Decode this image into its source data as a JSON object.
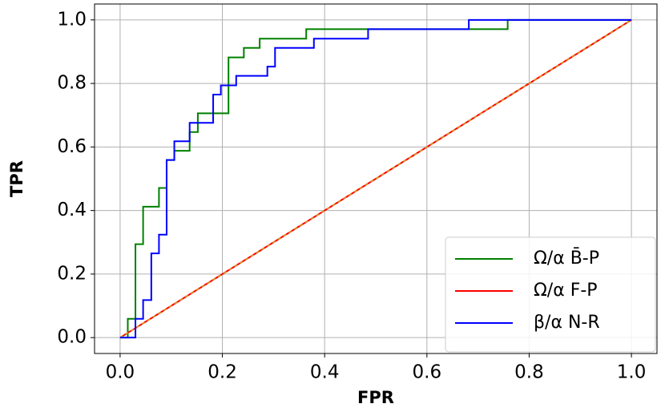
{
  "chart_data": {
    "type": "line",
    "xlabel": "FPR",
    "ylabel": "TPR",
    "xlim": [
      -0.05,
      1.05
    ],
    "ylim": [
      -0.05,
      1.05
    ],
    "xticks": [
      {
        "value": 0,
        "label": "0.0"
      },
      {
        "value": 0.2,
        "label": "0.2"
      },
      {
        "value": 0.4,
        "label": "0.4"
      },
      {
        "value": 0.6,
        "label": "0.6"
      },
      {
        "value": 0.8,
        "label": "0.8"
      },
      {
        "value": 1,
        "label": "1.0"
      }
    ],
    "yticks": [
      {
        "value": 0,
        "label": "0.0"
      },
      {
        "value": 0.2,
        "label": "0.2"
      },
      {
        "value": 0.4,
        "label": "0.4"
      },
      {
        "value": 0.6,
        "label": "0.6"
      },
      {
        "value": 0.8,
        "label": "0.8"
      },
      {
        "value": 1,
        "label": "1.0"
      }
    ],
    "grid": true,
    "legend": "lower right",
    "series": [
      {
        "name": "Ω/α B̄-P",
        "color": "#008000",
        "x": [
          0,
          0.015,
          0.015,
          0.03,
          0.03,
          0.045,
          0.045,
          0.076,
          0.076,
          0.091,
          0.091,
          0.106,
          0.106,
          0.136,
          0.136,
          0.152,
          0.152,
          0.212,
          0.212,
          0.242,
          0.242,
          0.273,
          0.273,
          0.364,
          0.364,
          0.758,
          0.758,
          1
        ],
        "values": [
          0,
          0,
          0.059,
          0.059,
          0.294,
          0.294,
          0.412,
          0.412,
          0.471,
          0.471,
          0.559,
          0.559,
          0.588,
          0.588,
          0.647,
          0.647,
          0.706,
          0.706,
          0.882,
          0.882,
          0.912,
          0.912,
          0.941,
          0.941,
          0.971,
          0.971,
          1,
          1
        ]
      },
      {
        "name": "Ω/α F-P",
        "color": "#ff0000",
        "x": [
          0,
          1
        ],
        "values": [
          0,
          1
        ]
      },
      {
        "name": "β/α N-R",
        "color": "#0000ff",
        "x": [
          0,
          0.03,
          0.03,
          0.045,
          0.045,
          0.061,
          0.061,
          0.076,
          0.076,
          0.091,
          0.091,
          0.106,
          0.106,
          0.136,
          0.136,
          0.182,
          0.182,
          0.197,
          0.197,
          0.227,
          0.227,
          0.288,
          0.288,
          0.303,
          0.303,
          0.379,
          0.379,
          0.485,
          0.485,
          0.682,
          0.682,
          1
        ],
        "values": [
          0,
          0,
          0.059,
          0.059,
          0.118,
          0.118,
          0.265,
          0.265,
          0.324,
          0.324,
          0.559,
          0.559,
          0.618,
          0.618,
          0.676,
          0.676,
          0.765,
          0.765,
          0.794,
          0.794,
          0.824,
          0.824,
          0.853,
          0.853,
          0.912,
          0.912,
          0.941,
          0.941,
          0.971,
          0.971,
          1,
          1
        ]
      }
    ]
  }
}
